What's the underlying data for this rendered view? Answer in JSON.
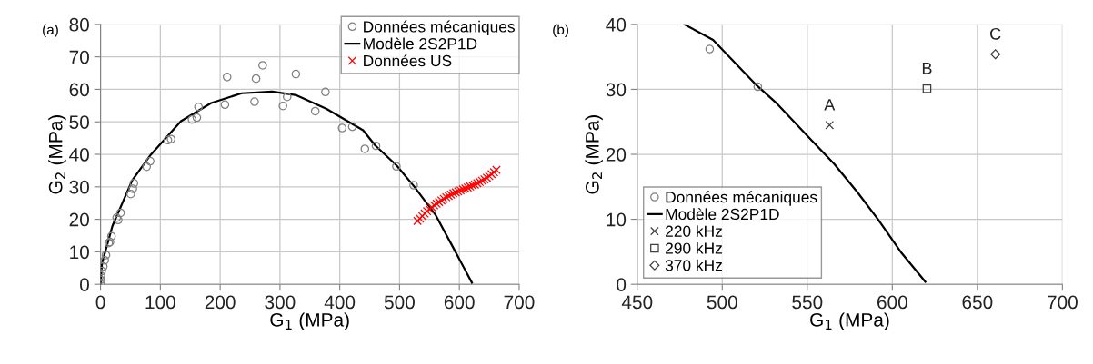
{
  "chart_data": [
    {
      "type": "scatter",
      "xlabel": "G$_{1}$ (MPa)",
      "ylabel": "G$_{2}$ (MPa)",
      "annotations": [
        "(a)"
      ],
      "xlim": [
        0,
        700
      ],
      "xticks": [
        0,
        100,
        200,
        300,
        400,
        500,
        600,
        700
      ],
      "ylim": [
        0,
        80
      ],
      "yticks": [
        0,
        10,
        20,
        30,
        40,
        50,
        60,
        70,
        80
      ],
      "grid": true,
      "legend": "top right",
      "series": [
        {
          "name": "Données mécaniques",
          "marker": "circle",
          "color": "#808080",
          "x": [
            0,
            0,
            0.5,
            2,
            4.6,
            7,
            9.1,
            13.7,
            15.7,
            18.3,
            27,
            29.5,
            33.5,
            50.5,
            54,
            55.7,
            77,
            83,
            112.6,
            118,
            153,
            161,
            163.8,
            208,
            211.6,
            257.5,
            260,
            271,
            305,
            312,
            326.6,
            359,
            376,
            404,
            421,
            442,
            460.6,
            494.7,
            523.6
          ],
          "values": [
            0,
            1.4,
            2.7,
            4.1,
            5.5,
            7.4,
            9,
            12.7,
            13,
            14.8,
            20.5,
            19.8,
            22,
            27.8,
            29.4,
            31.1,
            36.2,
            37.9,
            44.4,
            44.7,
            50.7,
            51.3,
            54.6,
            55.3,
            63.8,
            56.2,
            63.3,
            67.4,
            54.9,
            57.7,
            64.7,
            53.3,
            59.2,
            48.1,
            48.5,
            41.7,
            42.6,
            36.3,
            30.5
          ]
        },
        {
          "name": "Modèle 2S2P1D",
          "type": "line",
          "marker": "none",
          "color": "#000000",
          "x": [
            0,
            2.5,
            20,
            53,
            84,
            134.5,
            185,
            236,
            287,
            327.6,
            378,
            439,
            459,
            495,
            524,
            560,
            590,
            621
          ],
          "values": [
            0,
            6.5,
            18,
            32,
            39.9,
            50.2,
            55.8,
            58.8,
            59.3,
            58.2,
            54,
            47.4,
            42.8,
            36.6,
            30.2,
            21.4,
            11.2,
            0.5
          ]
        },
        {
          "name": "Données US",
          "marker": "cross",
          "color": "#ff0000",
          "x": [
            530,
            534,
            538,
            542,
            546,
            550,
            554,
            558,
            562,
            566,
            570,
            574,
            578,
            582,
            586,
            590,
            594,
            598,
            602,
            606,
            610,
            614,
            618,
            622,
            626,
            630,
            634,
            638,
            642,
            646,
            650,
            654,
            658,
            662
          ],
          "values": [
            19.5,
            20.2,
            21,
            21.8,
            22.5,
            23.1,
            23.7,
            24.3,
            24.8,
            25.3,
            25.8,
            26.3,
            26.8,
            27.2,
            27.6,
            28,
            28.3,
            28.6,
            28.9,
            29.2,
            29.5,
            29.8,
            30.1,
            30.4,
            30.7,
            31.1,
            31.5,
            31.9,
            32.3,
            32.8,
            33.3,
            33.9,
            34.5,
            35.2
          ]
        }
      ]
    },
    {
      "type": "scatter",
      "xlabel": "G$_{1}$ (MPa)",
      "ylabel": "G$_{2}$ (MPa)",
      "annotations": [
        "(b)",
        {
          "text": "A",
          "x": 563.1,
          "y": 24.5
        },
        {
          "text": "B",
          "x": 620.4,
          "y": 30.1
        },
        {
          "text": "C",
          "x": 660.6,
          "y": 35.4
        }
      ],
      "xlim": [
        450,
        700
      ],
      "xticks": [
        450,
        500,
        550,
        600,
        650,
        700
      ],
      "ylim": [
        0,
        40
      ],
      "yticks": [
        0,
        10,
        20,
        30,
        40
      ],
      "grid": true,
      "legend": "bottom left",
      "series": [
        {
          "name": "Données mécaniques",
          "marker": "circle",
          "color": "#808080",
          "x": [
            492.6,
            520.9
          ],
          "values": [
            36.2,
            30.4
          ]
        },
        {
          "name": "Modèle 2S2P1D",
          "type": "line",
          "marker": "none",
          "color": "#000000",
          "x": [
            477.7,
            494.6,
            520.3,
            532.2,
            552,
            565.9,
            579.7,
            591.6,
            605.5,
            619.4
          ],
          "values": [
            40,
            37.6,
            30.6,
            27.8,
            22.3,
            18.5,
            14.1,
            10,
            4.8,
            0.4
          ]
        },
        {
          "name": "220 kHz",
          "marker": "cross",
          "color": "#404040",
          "x": [
            563.1
          ],
          "values": [
            24.5
          ]
        },
        {
          "name": "290 kHz",
          "marker": "square",
          "color": "#404040",
          "x": [
            620.4
          ],
          "values": [
            30.1
          ]
        },
        {
          "name": "370 kHz",
          "marker": "diamond",
          "color": "#404040",
          "x": [
            660.6
          ],
          "values": [
            35.4
          ]
        }
      ]
    }
  ]
}
